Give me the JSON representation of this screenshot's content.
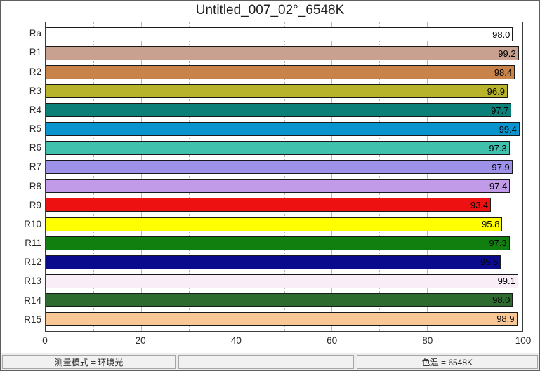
{
  "window": {
    "title": "Untitled_007_02°_6548K"
  },
  "chart_data": {
    "type": "bar",
    "orientation": "horizontal",
    "title": "Untitled_007_02°_6548K",
    "categories": [
      "Ra",
      "R1",
      "R2",
      "R3",
      "R4",
      "R5",
      "R6",
      "R7",
      "R8",
      "R9",
      "R10",
      "R11",
      "R12",
      "R13",
      "R14",
      "R15"
    ],
    "values": [
      98.0,
      99.2,
      98.4,
      96.9,
      97.7,
      99.4,
      97.3,
      97.9,
      97.4,
      93.4,
      95.8,
      97.3,
      95.5,
      99.1,
      98.0,
      98.9
    ],
    "value_labels": [
      "98.0",
      "99.2",
      "98.4",
      "96.9",
      "97.7",
      "99.4",
      "97.3",
      "97.9",
      "97.4",
      "93.4",
      "95.8",
      "97.3",
      "95.5",
      "99.1",
      "98.0",
      "98.9"
    ],
    "bar_colors": [
      "#ffffff",
      "#c9a191",
      "#c8834b",
      "#b7b32a",
      "#0d7f79",
      "#0994cf",
      "#3fc1ae",
      "#9e91e8",
      "#c19ae8",
      "#ee1111",
      "#ffff00",
      "#107f10",
      "#0a0a8c",
      "#f9edf8",
      "#2d6b2e",
      "#f8c795"
    ],
    "bar_outline_color": "#1a1a1a",
    "value_text_color": "#000000",
    "xlabel": "",
    "ylabel": "",
    "xlim": [
      0,
      100
    ],
    "x_ticks": [
      0,
      20,
      40,
      60,
      80,
      100
    ],
    "x_tick_labels": [
      "0",
      "20",
      "40",
      "60",
      "80",
      "100"
    ],
    "minor_grid_every": 10,
    "grid": "vertical; solid light-gray at majors (20/40/60/80), dotted at minors (10/30/50/70/90)",
    "legend": "none"
  },
  "status_bar": {
    "left": "测量模式 = 环境光",
    "middle": "",
    "right": "色温 = 6548K"
  }
}
